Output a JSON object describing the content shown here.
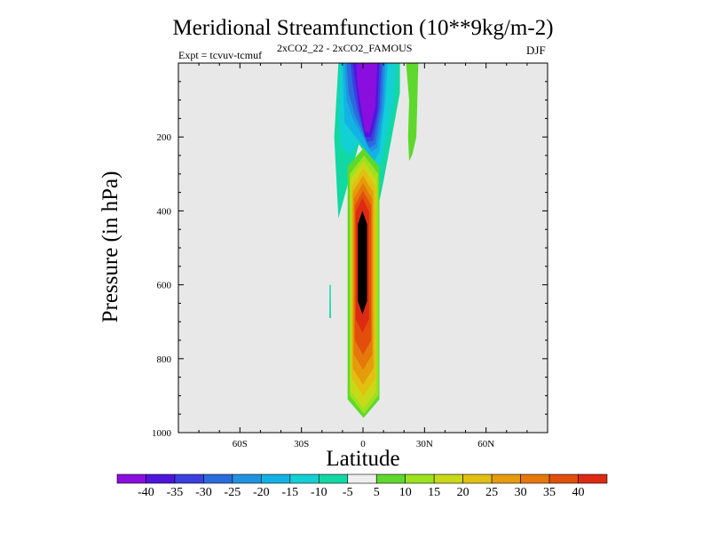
{
  "title": "Meridional Streamfunction (10**9kg/m-2)",
  "expt_label": "Expt = tcvuv-tcmuf",
  "subtitle": "2xCO2_22 - 2xCO2_FAMOUS",
  "season": "DJF",
  "chart_data": {
    "type": "heatmap",
    "title": "Meridional Streamfunction (10**9kg/m-2)",
    "xlabel": "Latitude",
    "ylabel": "Pressure (in hPa)",
    "xlim": [
      -90,
      90
    ],
    "ylim": [
      1000,
      0
    ],
    "y_reversed": true,
    "x_ticks": [
      {
        "value": -60,
        "label": "60S"
      },
      {
        "value": -30,
        "label": "30S"
      },
      {
        "value": 0,
        "label": "0"
      },
      {
        "value": 30,
        "label": "30N"
      },
      {
        "value": 60,
        "label": "60N"
      }
    ],
    "y_ticks": [
      {
        "value": 200,
        "label": "200"
      },
      {
        "value": 400,
        "label": "400"
      },
      {
        "value": 600,
        "label": "600"
      },
      {
        "value": 800,
        "label": "800"
      },
      {
        "value": 1000,
        "label": "1000"
      }
    ],
    "background_color": "#e8e8e8",
    "colorbar": {
      "labels": [
        "-40",
        "-35",
        "-30",
        "-25",
        "-20",
        "-15",
        "-10",
        "-5",
        "5",
        "10",
        "15",
        "20",
        "25",
        "30",
        "35",
        "40"
      ],
      "colors": [
        "#8a0fdf",
        "#4e16dd",
        "#3b3fe0",
        "#2a6cde",
        "#1f93e0",
        "#13b2e5",
        "#12d0d4",
        "#12d8a4",
        "#eeeeee",
        "#5ed82c",
        "#9be21f",
        "#c9d917",
        "#e2bf10",
        "#e59b0c",
        "#e5780b",
        "#e24f0c",
        "#dd2a12"
      ]
    },
    "features": [
      {
        "name": "negative-cell-upper-equatorial",
        "level_min": -40,
        "level_max": -5,
        "lat_range": [
          -12,
          18
        ],
        "pressure_range": [
          0,
          420
        ],
        "extreme": -40
      },
      {
        "name": "positive-cell-equatorial",
        "level_min": 5,
        "level_max": 40,
        "lat_range": [
          -5,
          8
        ],
        "pressure_range": [
          230,
          960
        ],
        "extreme": 40
      },
      {
        "name": "positive-strip-northern",
        "level_min": 5,
        "level_max": 5,
        "lat_range": [
          22,
          26
        ],
        "pressure_range": [
          0,
          265
        ],
        "extreme": 5
      },
      {
        "name": "negative-sliver-south",
        "level_min": -5,
        "level_max": -5,
        "lat_range": [
          -16,
          -15
        ],
        "pressure_range": [
          600,
          690
        ],
        "extreme": -5
      }
    ]
  }
}
